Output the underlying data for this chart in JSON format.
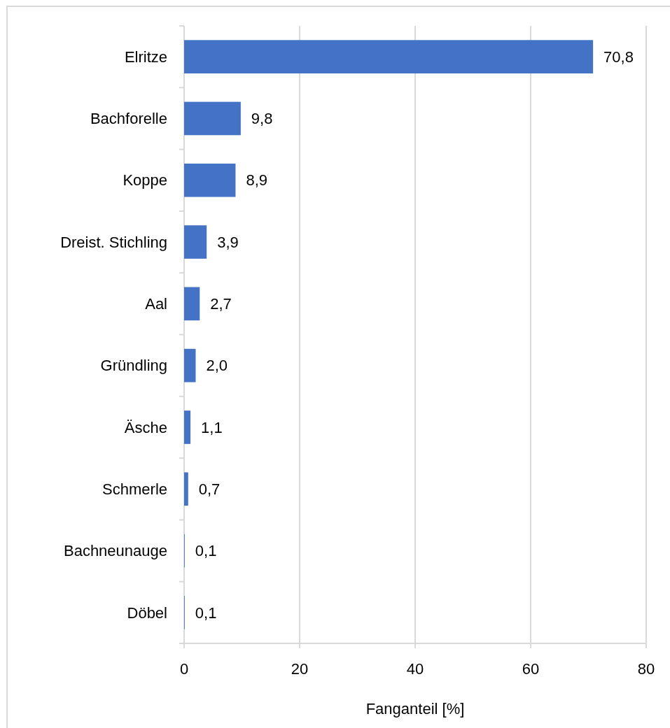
{
  "chart_data": {
    "type": "bar",
    "orientation": "horizontal",
    "xlabel": "Fanganteil [%]",
    "categories": [
      "Elritze",
      "Bachforelle",
      "Koppe",
      "Dreist. Stichling",
      "Aal",
      "Gründling",
      "Äsche",
      "Schmerle",
      "Bachneunauge",
      "Döbel"
    ],
    "values": [
      70.8,
      9.8,
      8.9,
      3.9,
      2.7,
      2.0,
      1.1,
      0.7,
      0.1,
      0.1
    ],
    "value_labels": [
      "70,8",
      "9,8",
      "8,9",
      "3,9",
      "2,7",
      "2,0",
      "1,1",
      "0,7",
      "0,1",
      "0,1"
    ],
    "color": "#4472c4",
    "xlim": [
      0,
      80
    ],
    "xticks": [
      0,
      20,
      40,
      60,
      80
    ],
    "grid": "x"
  }
}
